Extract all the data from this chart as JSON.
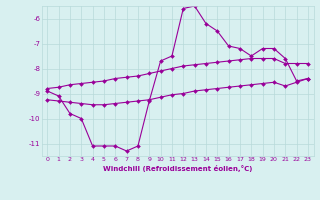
{
  "x": [
    0,
    1,
    2,
    3,
    4,
    5,
    6,
    7,
    8,
    9,
    10,
    11,
    12,
    13,
    14,
    15,
    16,
    17,
    18,
    19,
    20,
    21,
    22,
    23
  ],
  "line_jagged": [
    -8.9,
    -9.1,
    -9.8,
    -10.0,
    -11.1,
    -11.1,
    -11.1,
    -11.3,
    -11.1,
    -9.3,
    -7.7,
    -7.5,
    -5.6,
    -5.5,
    -6.2,
    -6.5,
    -7.1,
    -7.2,
    -7.5,
    -7.2,
    -7.2,
    -7.6,
    -8.5,
    -8.4
  ],
  "line_upper": [
    -8.8,
    -8.75,
    -8.65,
    -8.6,
    -8.55,
    -8.5,
    -8.4,
    -8.35,
    -8.3,
    -8.2,
    -8.1,
    -8.0,
    -7.9,
    -7.85,
    -7.8,
    -7.75,
    -7.7,
    -7.65,
    -7.6,
    -7.6,
    -7.6,
    -7.8,
    -7.8,
    -7.8
  ],
  "line_lower": [
    -9.25,
    -9.3,
    -9.35,
    -9.4,
    -9.45,
    -9.45,
    -9.4,
    -9.35,
    -9.3,
    -9.25,
    -9.15,
    -9.05,
    -9.0,
    -8.9,
    -8.85,
    -8.8,
    -8.75,
    -8.7,
    -8.65,
    -8.6,
    -8.55,
    -8.7,
    -8.55,
    -8.4
  ],
  "color": "#990099",
  "bg_color": "#d8f0f0",
  "grid_color": "#b8dada",
  "xlabel": "Windchill (Refroidissement éolien,°C)",
  "ylim": [
    -11.5,
    -5.5
  ],
  "xlim": [
    -0.5,
    23.5
  ],
  "yticks": [
    -6,
    -7,
    -8,
    -9,
    -10,
    -11
  ],
  "xticks": [
    0,
    1,
    2,
    3,
    4,
    5,
    6,
    7,
    8,
    9,
    10,
    11,
    12,
    13,
    14,
    15,
    16,
    17,
    18,
    19,
    20,
    21,
    22,
    23
  ],
  "marker_size": 2.0,
  "line_width": 0.8,
  "tick_fontsize": 4.5,
  "xlabel_fontsize": 5.0
}
